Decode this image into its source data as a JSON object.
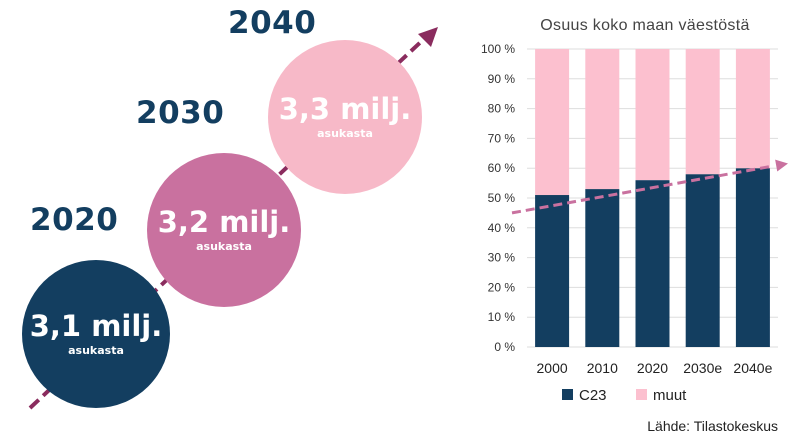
{
  "infographic": {
    "milestones": [
      {
        "year": "2020",
        "population": "3,1 milj.",
        "unit": "asukasta",
        "color": "#133e60"
      },
      {
        "year": "2030",
        "population": "3,2 milj.",
        "unit": "asukasta",
        "color": "#c9719f"
      },
      {
        "year": "2040",
        "population": "3,3 milj.",
        "unit": "asukasta",
        "color": "#f7b9c8"
      }
    ],
    "arrow_color": "#8a2c5e"
  },
  "chart_data": {
    "type": "bar",
    "stacked": true,
    "title": "Osuus koko maan väestöstä",
    "categories": [
      "2000",
      "2010",
      "2020",
      "2030e",
      "2040e"
    ],
    "series": [
      {
        "name": "C23",
        "values": [
          51,
          53,
          56,
          58,
          60
        ],
        "color": "#133e60"
      },
      {
        "name": "muut",
        "values": [
          49,
          47,
          44,
          42,
          40
        ],
        "color": "#fcc0cf"
      }
    ],
    "ylim": [
      0,
      100
    ],
    "yticks": [
      "0 %",
      "10 %",
      "20 %",
      "30 %",
      "40 %",
      "50 %",
      "60 %",
      "70 %",
      "80 %",
      "90 %",
      "100 %"
    ],
    "grid": true,
    "legend_position": "bottom",
    "trend_line": {
      "from": 45,
      "to": 61,
      "color": "#c9719f"
    }
  },
  "source": "Lähde: Tilastokeskus"
}
